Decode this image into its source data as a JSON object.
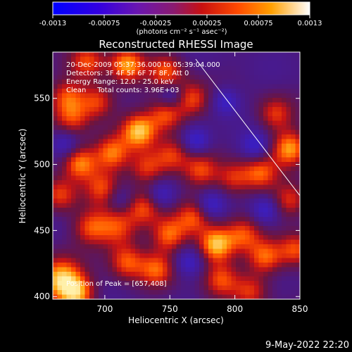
{
  "colorbar": {
    "tick_labels": [
      "-0.0013",
      "-0.00075",
      "-0.00025",
      "0.00025",
      "0.00075",
      "0.0013"
    ],
    "units": "(photons cm⁻² s⁻¹ asec⁻²)"
  },
  "plot": {
    "title": "Reconstructed RHESSI Image",
    "info_lines": [
      "20-Dec-2009 05:37:36.000 to 05:39:04.000",
      "Detectors: 3F 4F 5F 6F 7F 8F, Att 0",
      "Energy Range: 12.0 - 25.0 keV",
      "Clean     Total counts: 3.96E+03"
    ],
    "peak_label": "Position of Peak = [657,408]",
    "xlabel": "Heliocentric X (arcsec)",
    "ylabel": "Heliocentric Y (arcsec)",
    "x_ticks": [
      "700",
      "750",
      "800",
      "850"
    ],
    "y_ticks": [
      "400",
      "450",
      "500",
      "550"
    ],
    "x_range": [
      660,
      850
    ],
    "y_range": [
      398,
      585
    ]
  },
  "footer": {
    "timestamp": "9-May-2022 22:20"
  }
}
